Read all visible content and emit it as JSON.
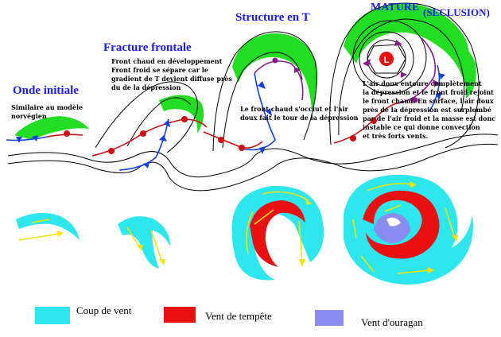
{
  "stages": [
    {
      "title": "Onde initiale",
      "note": [
        "Similaire au modèle",
        "norvégien"
      ]
    },
    {
      "title": "Fracture frontale",
      "note": [
        "Front chaud en développement",
        "Front froid se sépare car le",
        "gradient de T devient diffuse près",
        "du de la dépression"
      ]
    },
    {
      "title": "Structure en T",
      "note": [
        "Le front chaud s'occlut et l'air",
        "doux fait le tour de la dépression"
      ]
    },
    {
      "title": "MATURE",
      "title2": "(SECLUSION)",
      "low_label": "L",
      "note": [
        "L'air doux entoure complètement",
        "la dépression et le front froid rejoint",
        "le front chaud. En surface, l'air doux",
        "près de la dépression est surplombé",
        "par de l'air froid et la masse est donc",
        "instable ce qui donne convection",
        "et très forts vents."
      ]
    }
  ],
  "legend": [
    {
      "label": "Coup de vent",
      "color": "#2ee6ee"
    },
    {
      "label": "Vent de tempête",
      "color": "#e81010"
    },
    {
      "label": "Vent d'ouragan",
      "color": "#8a8cf0"
    }
  ],
  "colors": {
    "title": "#1a1aff",
    "cloud": "#22dd22",
    "cold_front": "#1040e0",
    "warm_front": "#cc1010",
    "occluded": "#8a1a8a",
    "arrow": "#f4e400"
  }
}
